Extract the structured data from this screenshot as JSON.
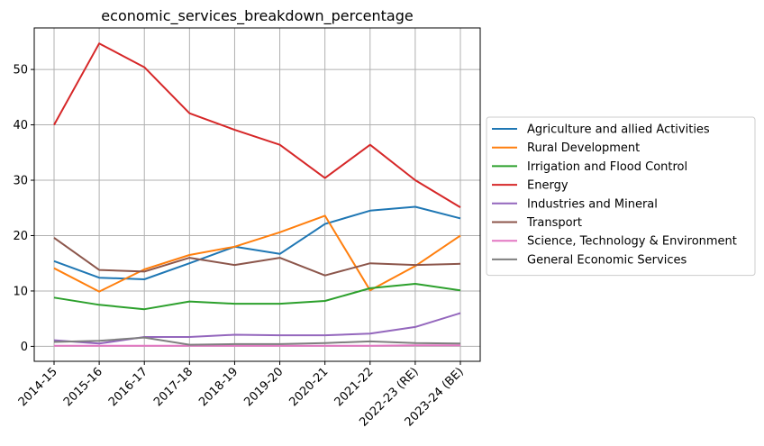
{
  "chart_data": {
    "type": "line",
    "title": "economic_services_breakdown_percentage",
    "xlabel": "",
    "ylabel": "",
    "categories": [
      "2014-15",
      "2015-16",
      "2016-17",
      "2017-18",
      "2018-19",
      "2019-20",
      "2020-21",
      "2021-22",
      "2022-23 (RE)",
      "2023-24 (BE)"
    ],
    "yticks": [
      0,
      10,
      20,
      30,
      40,
      50
    ],
    "ylim": [
      -2.7,
      57.5
    ],
    "grid": true,
    "legend_position": "outside-right",
    "series": [
      {
        "name": "Agriculture and allied Activities",
        "color": "#1f77b4",
        "values": [
          15.4,
          12.4,
          12.1,
          15.0,
          18.0,
          16.7,
          22.1,
          24.5,
          25.2,
          23.1
        ]
      },
      {
        "name": "Rural Development",
        "color": "#ff7f0e",
        "values": [
          14.1,
          9.9,
          13.9,
          16.5,
          18.0,
          20.6,
          23.6,
          10.1,
          14.5,
          20.0
        ]
      },
      {
        "name": "Irrigation and Flood Control",
        "color": "#2ca02c",
        "values": [
          8.8,
          7.5,
          6.7,
          8.1,
          7.7,
          7.7,
          8.2,
          10.5,
          11.3,
          10.1
        ]
      },
      {
        "name": "Energy",
        "color": "#d62728",
        "values": [
          40.0,
          54.7,
          50.4,
          42.1,
          39.1,
          36.4,
          30.4,
          36.4,
          30.0,
          25.1
        ]
      },
      {
        "name": "Industries and Mineral",
        "color": "#9467bd",
        "values": [
          1.1,
          0.5,
          1.7,
          1.7,
          2.1,
          2.0,
          2.0,
          2.3,
          3.5,
          6.0
        ]
      },
      {
        "name": "Transport",
        "color": "#8c564b",
        "values": [
          19.6,
          13.8,
          13.5,
          16.0,
          14.7,
          16.0,
          12.8,
          15.0,
          14.7,
          14.9
        ]
      },
      {
        "name": "Science, Technology & Environment",
        "color": "#e377c2",
        "values": [
          0.1,
          0.1,
          0.1,
          0.1,
          0.1,
          0.1,
          0.1,
          0.1,
          0.2,
          0.2
        ]
      },
      {
        "name": "General Economic Services",
        "color": "#7f7f7f",
        "values": [
          0.8,
          1.0,
          1.6,
          0.3,
          0.4,
          0.4,
          0.6,
          0.9,
          0.6,
          0.5
        ]
      }
    ]
  }
}
